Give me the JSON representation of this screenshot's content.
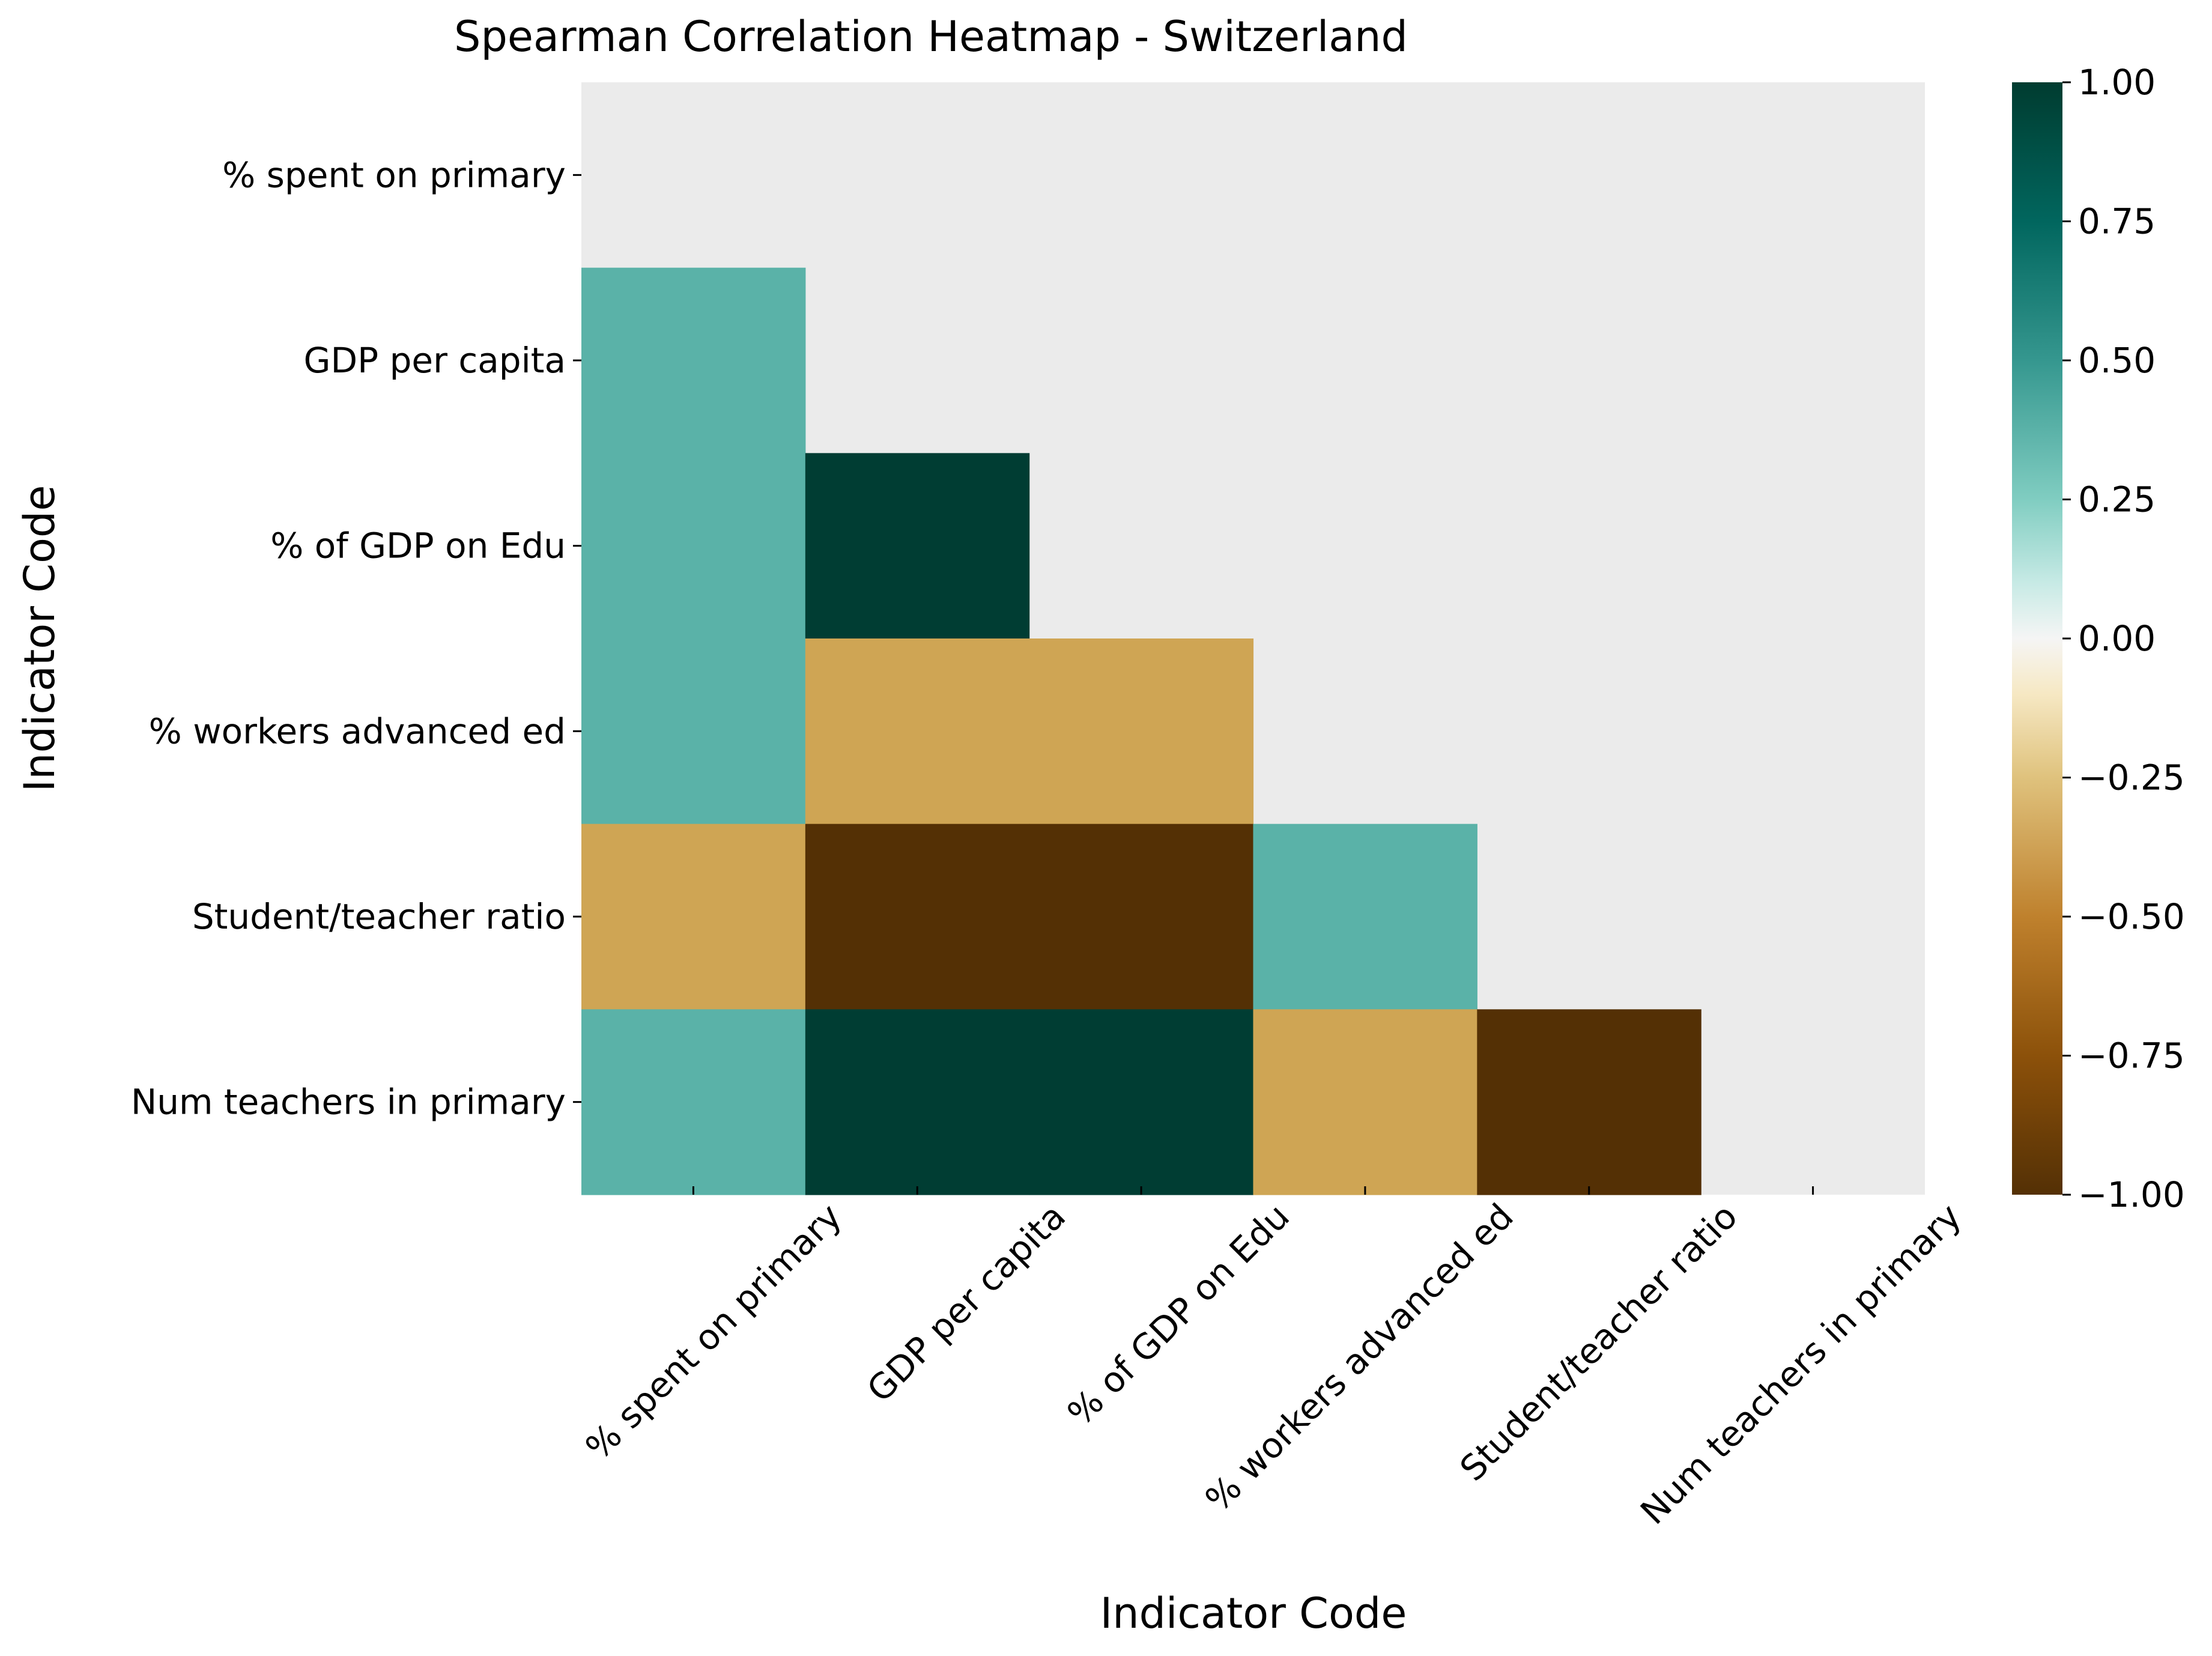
{
  "chart_data": {
    "type": "heatmap",
    "title": "Spearman Correlation Heatmap - Switzerland",
    "xlabel": "Indicator Code",
    "ylabel": "Indicator Code",
    "row_labels": [
      "% spent on primary",
      "GDP per capita",
      "% of GDP on Edu",
      "% workers advanced ed",
      "Student/teacher ratio",
      "Num teachers in primary"
    ],
    "col_labels": [
      "% spent on primary",
      "GDP per capita",
      "% of GDP on Edu",
      "% workers advanced ed",
      "Student/teacher ratio",
      "Num teachers in primary"
    ],
    "mask": "upper triangle including diagonal",
    "values": [
      [
        null,
        null,
        null,
        null,
        null,
        null
      ],
      [
        0.5,
        null,
        null,
        null,
        null,
        null
      ],
      [
        0.5,
        1.0,
        null,
        null,
        null,
        null
      ],
      [
        0.5,
        -0.5,
        -0.5,
        null,
        null,
        null
      ],
      [
        -0.5,
        -1.0,
        -1.0,
        0.5,
        null,
        null
      ],
      [
        0.5,
        1.0,
        1.0,
        -0.5,
        -1.0,
        null
      ]
    ],
    "vmin": -1.0,
    "vmax": 1.0,
    "colormap": "BrBG",
    "colorbar_ticks": [
      "1.00",
      "0.75",
      "0.50",
      "0.25",
      "0.00",
      "−0.25",
      "−0.50",
      "−0.75",
      "−1.00"
    ],
    "colorbar_tick_values": [
      1.0,
      0.75,
      0.5,
      0.25,
      0.0,
      -0.25,
      -0.5,
      -0.75,
      -1.0
    ],
    "grid": false,
    "mask_color": "#ebebeb"
  }
}
